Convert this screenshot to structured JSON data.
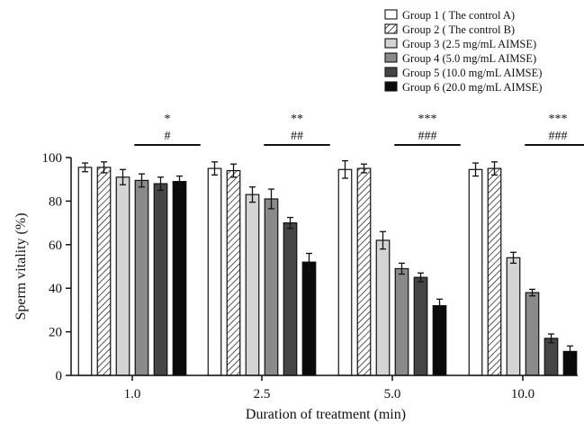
{
  "chart_data": {
    "type": "bar",
    "title": "",
    "xlabel": "Duration of treatment (min)",
    "ylabel": "Sperm vitality (%)",
    "ylim": [
      0,
      100
    ],
    "yticks": [
      0,
      20,
      40,
      60,
      80,
      100
    ],
    "categories": [
      "1.0",
      "2.5",
      "5.0",
      "10.0"
    ],
    "legend_position": "top-right",
    "series": [
      {
        "name": "Group 1 ( The control A)",
        "fill": "#ffffff",
        "pattern": "none",
        "values": [
          95.5,
          95,
          94.5,
          94.5
        ],
        "errors": [
          2,
          3,
          4,
          3
        ]
      },
      {
        "name": "Group 2 ( The control B)",
        "fill": "#ffffff",
        "pattern": "hatch",
        "values": [
          95.5,
          94,
          95,
          95
        ],
        "errors": [
          2.5,
          3,
          2,
          3
        ]
      },
      {
        "name": "Group 3 (2.5 mg/mL AIMSE)",
        "fill": "#d4d4d4",
        "pattern": "none",
        "values": [
          91,
          83,
          62,
          54
        ],
        "errors": [
          3.5,
          3.5,
          4,
          2.5
        ]
      },
      {
        "name": "Group 4 (5.0 mg/mL AIMSE)",
        "fill": "#8a8a8a",
        "pattern": "none",
        "values": [
          89.5,
          81,
          49,
          38
        ],
        "errors": [
          3,
          4.5,
          2.5,
          1.5
        ]
      },
      {
        "name": "Group 5 (10.0 mg/mL AIMSE)",
        "fill": "#454545",
        "pattern": "none",
        "values": [
          88,
          70,
          45,
          17
        ],
        "errors": [
          3,
          2.5,
          2,
          2
        ]
      },
      {
        "name": "Group 6 (20.0 mg/mL AIMSE)",
        "fill": "#0a0a0a",
        "pattern": "none",
        "values": [
          89,
          52,
          32,
          11
        ],
        "errors": [
          2.5,
          4,
          3,
          2.5
        ]
      }
    ],
    "significance": [
      {
        "category": "1.0",
        "top": "*",
        "bottom": "#"
      },
      {
        "category": "2.5",
        "top": "**",
        "bottom": "##"
      },
      {
        "category": "5.0",
        "top": "***",
        "bottom": "###"
      },
      {
        "category": "10.0",
        "top": "***",
        "bottom": "###"
      }
    ]
  }
}
